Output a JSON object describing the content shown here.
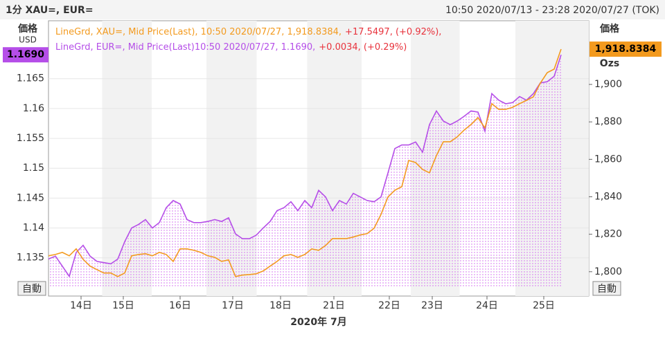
{
  "chart_data": {
    "type": "line",
    "title": "1分 XAU=, EUR=",
    "subtitle": "10:50 2020/07/13 - 23:28 2020/07/27 (TOK)",
    "x_label": "2020年 7月",
    "y_label": [
      "価格",
      "USD"
    ],
    "y2_label": [
      "価格",
      "Ozs"
    ],
    "buttons": [
      "自動",
      "自動"
    ],
    "x": [
      0,
      1,
      2,
      3,
      4,
      5,
      6,
      7,
      8,
      9,
      10,
      11,
      12,
      13,
      14,
      15,
      16,
      17,
      18,
      19,
      20,
      21,
      22,
      23,
      24,
      25,
      26,
      27,
      28,
      29,
      30,
      31,
      32,
      33,
      34,
      35,
      36,
      37,
      38,
      39,
      40,
      41,
      42,
      43,
      44,
      45,
      46,
      47,
      48,
      49,
      50,
      51,
      52,
      53,
      54,
      55,
      56,
      57,
      58,
      59,
      60,
      61,
      62,
      63,
      64,
      65,
      66,
      67,
      68,
      69,
      70,
      71,
      72,
      73,
      74
    ],
    "xlim": [
      0,
      78
    ],
    "xticks": [
      {
        "value": 4.7,
        "label": "14日"
      },
      {
        "value": 10.8,
        "label": "15日"
      },
      {
        "value": 19,
        "label": "16日"
      },
      {
        "value": 26.6,
        "label": "17日"
      },
      {
        "value": 33.5,
        "label": "18日"
      },
      {
        "value": 41.2,
        "label": "21日"
      },
      {
        "value": 49.2,
        "label": "22日"
      },
      {
        "value": 55.4,
        "label": "23日"
      },
      {
        "value": 63.3,
        "label": "24日"
      },
      {
        "value": 71.5,
        "label": "25日"
      }
    ],
    "ylim": [
      1.1286,
      1.1747
    ],
    "yticks": [
      1.135,
      1.14,
      1.145,
      1.15,
      1.155,
      1.16,
      1.165
    ],
    "y2lim": [
      1787,
      1934
    ],
    "y2ticks": [
      {
        "value": 1800,
        "label": "1,800"
      },
      {
        "value": 1820,
        "label": "1,820"
      },
      {
        "value": 1840,
        "label": "1,840"
      },
      {
        "value": 1860,
        "label": "1,860"
      },
      {
        "value": 1880,
        "label": "1,880"
      },
      {
        "value": 1900,
        "label": "1,900"
      }
    ],
    "grid": true,
    "series": [
      {
        "name": "LineGrd, XAU=, Mid Price(Last), 10:50 2020/07/27, 1,918.8384,",
        "change": "+17.5497, (+0.92%),",
        "last_label": "1,918.8384",
        "color": "#f39a1e",
        "axis": "y2",
        "area": false,
        "values": [
          1808.5,
          1809.2,
          1810.3,
          1808.5,
          1812.2,
          1806.6,
          1803.0,
          1801.1,
          1799.3,
          1799.3,
          1797.4,
          1799.3,
          1808.5,
          1809.2,
          1809.6,
          1808.5,
          1810.3,
          1809.2,
          1805.5,
          1812.2,
          1812.2,
          1811.4,
          1810.3,
          1808.5,
          1807.7,
          1805.5,
          1806.3,
          1797.4,
          1798.2,
          1798.5,
          1798.9,
          1800.4,
          1803.0,
          1805.5,
          1808.5,
          1809.2,
          1807.7,
          1809.2,
          1812.2,
          1811.4,
          1814.0,
          1817.7,
          1817.7,
          1817.7,
          1818.5,
          1819.6,
          1820.3,
          1823.2,
          1830.6,
          1839.9,
          1843.5,
          1845.4,
          1859.4,
          1858.3,
          1854.6,
          1852.8,
          1862.0,
          1869.4,
          1869.4,
          1872.0,
          1875.6,
          1878.6,
          1882.3,
          1876.8,
          1889.7,
          1886.7,
          1886.7,
          1887.8,
          1889.7,
          1891.5,
          1893.4,
          1900.7,
          1906.3,
          1908.2,
          1918.8384
        ]
      },
      {
        "name": "LineGrd, EUR=, Mid Price(Last)10:50 2020/07/27, 1.1690,",
        "change": "+0.0034, (+0.29%)",
        "last_label": "1.1690",
        "color": "#b54ee8",
        "axis": "y",
        "area": true,
        "values": [
          1.1348,
          1.1353,
          1.1336,
          1.1319,
          1.1359,
          1.1371,
          1.1353,
          1.1344,
          1.1342,
          1.134,
          1.1348,
          1.1377,
          1.14,
          1.1406,
          1.1414,
          1.14,
          1.1409,
          1.1434,
          1.1446,
          1.144,
          1.1414,
          1.1409,
          1.1409,
          1.1411,
          1.1414,
          1.1411,
          1.1417,
          1.139,
          1.1382,
          1.1382,
          1.1388,
          1.14,
          1.1411,
          1.1429,
          1.1434,
          1.1444,
          1.1429,
          1.1446,
          1.1434,
          1.1463,
          1.1452,
          1.1429,
          1.1446,
          1.144,
          1.1458,
          1.1452,
          1.1446,
          1.1444,
          1.1452,
          1.1492,
          1.1533,
          1.1539,
          1.1539,
          1.1544,
          1.1527,
          1.1573,
          1.1596,
          1.1579,
          1.1573,
          1.1579,
          1.1587,
          1.1596,
          1.1594,
          1.1562,
          1.1625,
          1.1614,
          1.1608,
          1.161,
          1.162,
          1.1614,
          1.1625,
          1.1643,
          1.1645,
          1.1654,
          1.169
        ]
      }
    ]
  }
}
